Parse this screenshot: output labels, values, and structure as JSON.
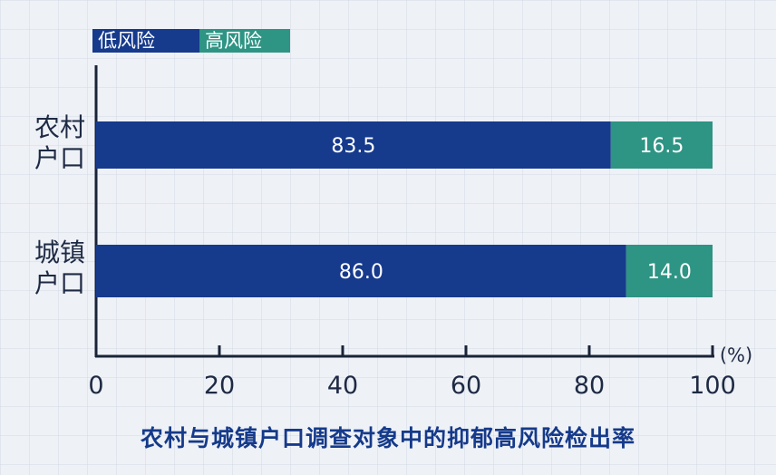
{
  "chart_data": {
    "type": "bar",
    "orientation": "horizontal",
    "stacked": true,
    "title": "农村与城镇户口调查对象中的抑郁高风险检出率",
    "categories": [
      "农村户口",
      "城镇户口"
    ],
    "category_lines": [
      [
        "农村",
        "户口"
      ],
      [
        "城镇",
        "户口"
      ]
    ],
    "series": [
      {
        "name": "低风险",
        "values": [
          83.5,
          86.0
        ],
        "color": "#163a8c"
      },
      {
        "name": "高风险",
        "values": [
          16.5,
          14.0
        ],
        "color": "#2e9484"
      }
    ],
    "data_labels": [
      [
        "83.5",
        "86.0"
      ],
      [
        "16.5",
        "14.0"
      ]
    ],
    "xlim": [
      0,
      100
    ],
    "xticks": [
      0,
      20,
      40,
      60,
      80,
      100
    ],
    "xtick_labels": [
      "0",
      "20",
      "40",
      "60",
      "80",
      "100"
    ],
    "unit_label": "(%)",
    "legend_position": "top-left",
    "grid": false
  }
}
